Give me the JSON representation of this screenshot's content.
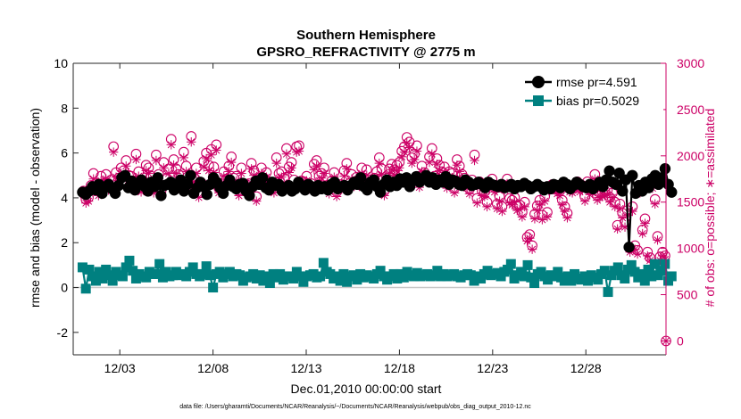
{
  "chart_data": {
    "type": "line",
    "title_line1": "Southern Hemisphere",
    "title_line2": "GPSRO_REFRACTIVITY @ 2775 m",
    "xlabel": "Dec.01,2010 00:00:00 start",
    "ylabel_left": "rmse and bias (model - observation)",
    "ylabel_right": "# of obs: o=possible; ∗=assimilated",
    "footnote": "data file: /Users/gharamti/Documents/NCAR/Reanalysis/~/Documents/NCAR/Reanalysis/webpub/obs_diag_output_2010-12.nc",
    "xlim": [
      0.5,
      32.3
    ],
    "ylim_left": [
      -3,
      10
    ],
    "ylim_right": [
      -150,
      3000
    ],
    "x_ticks": [
      3,
      8,
      13,
      18,
      23,
      28
    ],
    "x_tick_labels": [
      "12/03",
      "12/08",
      "12/13",
      "12/18",
      "12/23",
      "12/28"
    ],
    "y_left_ticks": [
      -2,
      0,
      2,
      4,
      6,
      8,
      10
    ],
    "y_left_tick_labels": [
      "-2",
      "0",
      "2",
      "4",
      "6",
      "8",
      "10"
    ],
    "y_right_ticks": [
      0,
      500,
      1000,
      1500,
      2000,
      2500,
      3000
    ],
    "y_right_tick_labels": [
      "0",
      "500",
      "1000",
      "1500",
      "2000",
      "2500",
      "3000"
    ],
    "colors": {
      "rmse": "#000000",
      "bias": "#008080",
      "obs": "#cc0066",
      "zero_line": "#c8c8c8",
      "axis": "#262626"
    },
    "legend_position": "top-right",
    "series": [
      {
        "name": "rmse pr=4.591",
        "key": "rmse",
        "values": [
          4.25,
          4.15,
          4.3,
          4.5,
          4.35,
          4.6,
          4.2,
          4.5,
          4.6,
          4.4,
          4.2,
          4.55,
          4.9,
          5.0,
          4.45,
          4.75,
          4.35,
          4.6,
          4.8,
          4.5,
          4.3,
          4.7,
          4.5,
          4.9,
          4.1,
          4.55,
          4.6,
          4.7,
          4.35,
          4.55,
          4.8,
          4.3,
          4.6,
          5.0,
          4.2,
          4.45,
          4.7,
          4.5,
          4.15,
          4.6,
          4.9,
          4.7,
          4.45,
          4.2,
          4.55,
          4.8,
          4.5,
          4.4,
          4.6,
          4.65,
          4.3,
          4.1,
          4.5,
          4.75,
          4.6,
          4.9,
          4.45,
          4.35,
          4.7,
          4.55,
          4.6,
          4.3,
          4.45,
          4.55,
          4.3,
          4.4,
          4.7,
          4.5,
          4.35,
          4.6,
          4.5,
          4.3,
          4.55,
          4.4,
          4.5,
          4.35,
          4.6,
          4.7,
          4.4,
          4.5,
          4.55,
          4.35,
          4.55,
          4.7,
          4.6,
          4.9,
          4.5,
          4.35,
          4.7,
          4.8,
          4.5,
          4.25,
          4.6,
          4.8,
          4.5,
          4.7,
          4.55,
          4.85,
          4.7,
          4.9,
          4.5,
          4.8,
          4.95,
          4.7,
          4.85,
          5.0,
          4.7,
          4.9,
          4.6,
          4.8,
          4.7,
          4.95,
          4.6,
          4.8,
          4.75,
          4.6,
          4.55,
          4.8,
          4.7,
          4.55,
          4.6,
          4.7,
          4.6,
          4.45,
          4.7,
          4.6,
          4.55,
          4.5,
          4.6,
          4.45,
          4.5,
          4.6,
          4.4,
          4.55,
          4.5,
          4.65,
          4.55,
          4.4,
          4.5,
          4.6,
          4.5,
          4.35,
          4.5,
          4.4,
          4.6,
          4.55,
          4.45,
          4.7,
          4.6,
          4.4,
          4.55,
          4.7,
          4.6,
          4.5,
          4.45,
          4.6,
          4.4,
          4.55,
          4.7,
          4.5,
          4.8,
          5.2,
          4.7,
          4.6,
          5.1,
          4.3,
          4.8,
          1.8,
          5.0,
          4.2,
          4.55,
          4.3,
          4.7,
          4.45,
          4.85,
          5.0,
          4.6,
          4.9,
          5.3,
          4.6,
          4.25
        ]
      },
      {
        "name": "bias pr=0.5029",
        "key": "bias",
        "values": [
          0.9,
          -0.05,
          0.8,
          0.5,
          0.3,
          0.7,
          0.4,
          0.8,
          0.55,
          0.3,
          0.7,
          0.55,
          0.5,
          0.9,
          1.2,
          0.75,
          0.4,
          0.6,
          0.5,
          0.45,
          0.7,
          0.6,
          0.6,
          1.05,
          0.45,
          0.7,
          0.5,
          0.55,
          0.7,
          0.55,
          0.6,
          0.5,
          0.7,
          0.9,
          0.6,
          0.5,
          0.6,
          0.95,
          0.55,
          0.0,
          0.6,
          0.7,
          0.45,
          0.6,
          0.7,
          0.5,
          0.6,
          0.55,
          0.3,
          0.45,
          0.5,
          0.6,
          0.4,
          0.55,
          0.3,
          0.5,
          0.2,
          0.6,
          0.45,
          0.6,
          0.35,
          0.5,
          0.5,
          0.4,
          0.7,
          0.5,
          0.25,
          0.5,
          0.55,
          0.6,
          0.45,
          0.5,
          1.1,
          0.7,
          0.6,
          0.4,
          0.5,
          0.3,
          0.6,
          0.25,
          0.5,
          0.55,
          0.35,
          0.6,
          0.45,
          0.55,
          0.5,
          0.4,
          0.6,
          0.75,
          0.5,
          0.35,
          0.5,
          0.6,
          0.4,
          0.6,
          0.45,
          0.7,
          0.55,
          0.5,
          0.65,
          0.5,
          0.55,
          0.6,
          0.5,
          0.55,
          0.75,
          0.5,
          0.6,
          0.5,
          0.55,
          0.6,
          0.5,
          0.45,
          0.55,
          0.6,
          0.55,
          0.3,
          0.5,
          0.4,
          0.6,
          0.75,
          0.55,
          0.6,
          0.65,
          0.5,
          0.7,
          0.8,
          1.05,
          0.4,
          0.55,
          0.7,
          0.5,
          1.0,
          0.45,
          0.2,
          0.6,
          0.7,
          0.5,
          0.35,
          0.55,
          0.5,
          0.7,
          0.45,
          0.3,
          0.5,
          0.3,
          0.6,
          0.4,
          0.35,
          0.5,
          0.3,
          0.55,
          0.45,
          0.35,
          0.6,
          0.75,
          -0.2,
          0.55,
          0.75,
          0.9,
          0.55,
          0.4,
          0.8,
          1.0,
          0.7,
          0.45,
          0.6,
          0.3,
          0.8,
          0.5,
          1.05,
          0.55,
          0.75,
          1.05,
          0.3,
          0.5
        ]
      },
      {
        "name": "# obs possible",
        "key": "possible",
        "values": [
          1620,
          1530,
          1550,
          1680,
          1810,
          1700,
          1620,
          1780,
          1690,
          1800,
          1680,
          1740,
          2100,
          1820,
          1760,
          1870,
          1840,
          1950,
          1790,
          1780,
          1730,
          2020,
          1830,
          1660,
          1720,
          1900,
          1870,
          1780,
          1650,
          2010,
          1800,
          1620,
          1930,
          1750,
          1860,
          2180,
          1960,
          1860,
          1800,
          1680,
          2040,
          1890,
          1700,
          2210,
          1770,
          1870,
          1600,
          1710,
          1940,
          2030,
          1900,
          2070,
          1880,
          2120,
          1650,
          1700,
          1830,
          1750,
          1890,
          1990,
          1760,
          1780,
          1620,
          1870,
          1700,
          1690,
          1700,
          1920,
          1840,
          1560,
          1760,
          1870,
          1760,
          1820,
          1700,
          1680,
          1650,
          1980,
          1810,
          1830,
          1760,
          2080,
          1880,
          1930,
          1740,
          2100,
          2110,
          1730,
          1720,
          1780,
          1690,
          1700,
          1910,
          1950,
          1780,
          1810,
          1870,
          1680,
          1640,
          1730,
          1820,
          1610,
          1690,
          1690,
          1840,
          1920,
          1700,
          1800,
          1720,
          1770,
          1720,
          1870,
          1750,
          1850,
          1710,
          1720,
          1760,
          1830,
          1980,
          1860,
          1620,
          1740,
          1860,
          1910,
          1850,
          1900,
          1930,
          2050,
          2100,
          2200,
          2150,
          1980,
          2020,
          2110,
          1710,
          1890,
          1820,
          1770,
          1990,
          2080,
          1780,
          1970,
          1900,
          1830,
          1880,
          1700,
          1830,
          1810,
          1650,
          1960,
          1890,
          1800,
          1760,
          1700,
          1640,
          1740,
          2010,
          1540,
          1720,
          1620,
          1610,
          1500,
          1690,
          1750,
          1660,
          1480,
          1560,
          1450,
          1680,
          1750,
          1540,
          1520,
          1550,
          1460,
          1470,
          1390,
          1500,
          1120,
          1150,
          1030,
          1370,
          1460,
          1520,
          1360,
          1560,
          1390,
          1670,
          1690,
          1680,
          1640,
          1620,
          1520,
          1450,
          1380,
          1660,
          1650,
          1690,
          1720,
          1660,
          1680,
          1560,
          1720,
          1630,
          1650,
          1800,
          1570,
          1600,
          1610,
          1620,
          1630,
          1550,
          1600,
          1500,
          1250,
          1480,
          1380,
          1280,
          1410,
          1000,
          1450,
          1030,
          980,
          1650,
          1200,
          1320,
          960,
          900,
          1700,
          1530,
          1130,
          910,
          960,
          920
        ]
      },
      {
        "name": "# obs assimilated",
        "key": "assimilated",
        "values": [
          1580,
          1490,
          1510,
          1630,
          1750,
          1650,
          1570,
          1730,
          1640,
          1750,
          1630,
          1700,
          2040,
          1770,
          1710,
          1810,
          1790,
          1890,
          1740,
          1730,
          1680,
          1960,
          1780,
          1610,
          1670,
          1840,
          1810,
          1720,
          1600,
          1950,
          1750,
          1570,
          1870,
          1700,
          1810,
          2120,
          1900,
          1810,
          1750,
          1630,
          1980,
          1830,
          1650,
          2150,
          1720,
          1810,
          1550,
          1660,
          1880,
          1970,
          1840,
          2010,
          1820,
          2060,
          1600,
          1650,
          1780,
          1700,
          1830,
          1930,
          1710,
          1730,
          1570,
          1810,
          1650,
          1640,
          1650,
          1860,
          1790,
          1510,
          1710,
          1810,
          1710,
          1770,
          1650,
          1630,
          1600,
          1920,
          1760,
          1770,
          1710,
          2020,
          1820,
          1870,
          1690,
          2040,
          2050,
          1680,
          1670,
          1730,
          1640,
          1650,
          1850,
          1890,
          1730,
          1760,
          1810,
          1630,
          1590,
          1680,
          1770,
          1560,
          1640,
          1640,
          1780,
          1860,
          1650,
          1750,
          1670,
          1720,
          1670,
          1810,
          1700,
          1790,
          1660,
          1670,
          1710,
          1780,
          1920,
          1800,
          1570,
          1690,
          1810,
          1850,
          1790,
          1840,
          1870,
          1990,
          2040,
          2140,
          2090,
          1920,
          1960,
          2050,
          1660,
          1830,
          1770,
          1720,
          1930,
          2020,
          1730,
          1910,
          1840,
          1780,
          1820,
          1650,
          1780,
          1760,
          1600,
          1900,
          1830,
          1750,
          1710,
          1650,
          1590,
          1690,
          1950,
          1490,
          1670,
          1570,
          1560,
          1450,
          1640,
          1700,
          1610,
          1430,
          1510,
          1400,
          1630,
          1700,
          1490,
          1470,
          1500,
          1410,
          1420,
          1340,
          1450,
          1080,
          1110,
          990,
          1320,
          1410,
          1470,
          1310,
          1510,
          1340,
          1620,
          1640,
          1630,
          1590,
          1570,
          1470,
          1400,
          1330,
          1610,
          1600,
          1640,
          1670,
          1610,
          1630,
          1510,
          1670,
          1580,
          1600,
          1750,
          1520,
          1550,
          1560,
          1570,
          1580,
          1500,
          1550,
          1450,
          1210,
          1430,
          1330,
          1230,
          1360,
          960,
          1400,
          990,
          940,
          1600,
          1160,
          1270,
          920,
          870,
          1650,
          1480,
          1090,
          870,
          920,
          880
        ]
      }
    ],
    "isolated_obs_point": {
      "x": 32.3,
      "y": 0
    }
  }
}
